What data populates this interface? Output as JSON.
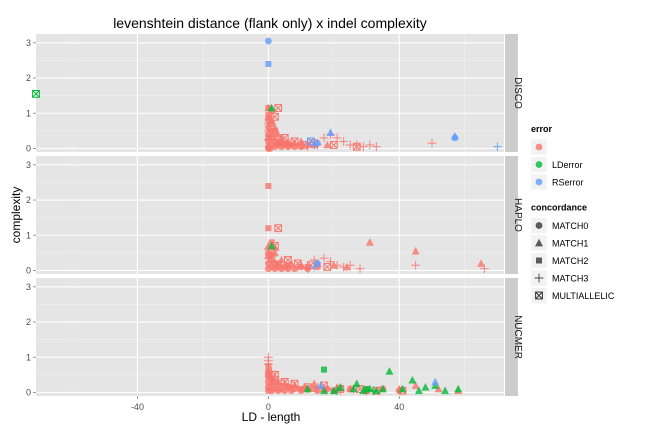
{
  "chart_data": {
    "type": "scatter",
    "title": "levenshtein distance (flank only) x indel complexity",
    "xlabel": "LD - length",
    "ylabel": "complexity",
    "xlim": [
      -71,
      72
    ],
    "ylim": [
      -0.1,
      3.25
    ],
    "x_ticks": [
      {
        "value": -40,
        "label": "-40"
      },
      {
        "value": 0,
        "label": "0"
      },
      {
        "value": 40,
        "label": "40"
      }
    ],
    "y_ticks": [
      {
        "value": 0,
        "label": "0"
      },
      {
        "value": 1,
        "label": "1"
      },
      {
        "value": 2,
        "label": "2"
      },
      {
        "value": 3,
        "label": "3"
      }
    ],
    "grid": true,
    "facets": [
      "DISCO",
      "HAPLO",
      "NUCMER"
    ],
    "legend_position": "right",
    "legends": [
      {
        "title": "error",
        "kind": "color",
        "entries": [
          {
            "key": "none",
            "label": "",
            "color": "#F8766D"
          },
          {
            "key": "LDerror",
            "label": "LDerror",
            "color": "#00BA38"
          },
          {
            "key": "RSerror",
            "label": "RSerror",
            "color": "#619CFF"
          }
        ]
      },
      {
        "title": "concordance",
        "kind": "shape",
        "entries": [
          {
            "key": "MATCH0",
            "label": "MATCH0",
            "shape": "circle"
          },
          {
            "key": "MATCH1",
            "label": "MATCH1",
            "shape": "triangle"
          },
          {
            "key": "MATCH2",
            "label": "MATCH2",
            "shape": "square"
          },
          {
            "key": "MATCH3",
            "label": "MATCH3",
            "shape": "plus"
          },
          {
            "key": "MULTIALLELIC",
            "label": "MULTIALLELIC",
            "shape": "boxx"
          }
        ]
      }
    ],
    "series": [
      {
        "facet": "DISCO",
        "error": "none",
        "concordance": "MATCH0",
        "points": [
          [
            0,
            0.05
          ],
          [
            0,
            0.2
          ],
          [
            0,
            0.4
          ],
          [
            1,
            0.1
          ],
          [
            1,
            0.3
          ],
          [
            2,
            0.05
          ],
          [
            2,
            0.2
          ],
          [
            3,
            0.1
          ],
          [
            3,
            0.15
          ],
          [
            4,
            0.05
          ],
          [
            5,
            0.1
          ],
          [
            6,
            0.05
          ],
          [
            7,
            0.1
          ],
          [
            8,
            0.05
          ],
          [
            10,
            0.05
          ],
          [
            12,
            0.1
          ],
          [
            0,
            0.6
          ],
          [
            0,
            0.8
          ],
          [
            1,
            0.5
          ],
          [
            2,
            0.4
          ],
          [
            0,
            0.0
          ],
          [
            0.5,
            0.0
          ]
        ]
      },
      {
        "facet": "DISCO",
        "error": "none",
        "concordance": "MATCH1",
        "points": [
          [
            0,
            1.15
          ],
          [
            1,
            0.8
          ],
          [
            2,
            0.6
          ],
          [
            3,
            0.4
          ],
          [
            4,
            0.3
          ],
          [
            6,
            0.2
          ],
          [
            8,
            0.15
          ],
          [
            10,
            0.2
          ],
          [
            14,
            0.1
          ],
          [
            18,
            0.1
          ],
          [
            0,
            0.9
          ],
          [
            1,
            1.1
          ]
        ]
      },
      {
        "facet": "DISCO",
        "error": "none",
        "concordance": "MATCH2",
        "points": [
          [
            0,
            1.15
          ],
          [
            0,
            0.95
          ],
          [
            1,
            0.7
          ],
          [
            2,
            0.5
          ],
          [
            0,
            0.3
          ],
          [
            3,
            0.2
          ],
          [
            5,
            0.15
          ]
        ]
      },
      {
        "facet": "DISCO",
        "error": "none",
        "concordance": "MATCH3",
        "points": [
          [
            0,
            0.5
          ],
          [
            1,
            0.35
          ],
          [
            2,
            0.25
          ],
          [
            4,
            0.15
          ],
          [
            6,
            0.1
          ],
          [
            9,
            0.1
          ],
          [
            12,
            0.05
          ],
          [
            15,
            0.1
          ],
          [
            17,
            0.3
          ],
          [
            19,
            0.4
          ],
          [
            21,
            0.3
          ],
          [
            23,
            0.2
          ],
          [
            25,
            0.1
          ],
          [
            27,
            0.1
          ],
          [
            29,
            0.05
          ],
          [
            31,
            0.1
          ],
          [
            33,
            0.05
          ],
          [
            50,
            0.15
          ],
          [
            0,
            0.7
          ],
          [
            1,
            0.9
          ],
          [
            0,
            0.25
          ]
        ]
      },
      {
        "facet": "DISCO",
        "error": "none",
        "concordance": "MULTIALLELIC",
        "points": [
          [
            3,
            1.15
          ],
          [
            2,
            0.9
          ],
          [
            5,
            0.3
          ],
          [
            8,
            0.2
          ],
          [
            11,
            0.1
          ],
          [
            14,
            0.15
          ],
          [
            20,
            0.1
          ],
          [
            27,
            0.05
          ]
        ]
      },
      {
        "facet": "DISCO",
        "error": "LDerror",
        "concordance": "MULTIALLELIC",
        "points": [
          [
            -71,
            1.55
          ]
        ]
      },
      {
        "facet": "DISCO",
        "error": "LDerror",
        "concordance": "MATCH1",
        "points": [
          [
            1,
            1.15
          ]
        ]
      },
      {
        "facet": "DISCO",
        "error": "RSerror",
        "concordance": "MATCH0",
        "points": [
          [
            0,
            3.05
          ],
          [
            15,
            0.15
          ],
          [
            57,
            0.3
          ]
        ]
      },
      {
        "facet": "DISCO",
        "error": "RSerror",
        "concordance": "MATCH1",
        "points": [
          [
            19,
            0.45
          ],
          [
            57,
            0.35
          ]
        ]
      },
      {
        "facet": "DISCO",
        "error": "RSerror",
        "concordance": "MATCH2",
        "points": [
          [
            0,
            2.4
          ]
        ]
      },
      {
        "facet": "DISCO",
        "error": "RSerror",
        "concordance": "MATCH3",
        "points": [
          [
            70,
            0.05
          ],
          [
            14,
            0.1
          ]
        ]
      },
      {
        "facet": "DISCO",
        "error": "RSerror",
        "concordance": "MULTIALLELIC",
        "points": [
          [
            13,
            0.2
          ]
        ]
      },
      {
        "facet": "HAPLO",
        "error": "none",
        "concordance": "MATCH0",
        "points": [
          [
            0,
            0.05
          ],
          [
            0,
            0.2
          ],
          [
            1,
            0.1
          ],
          [
            1,
            0.3
          ],
          [
            2,
            0.05
          ],
          [
            2,
            0.2
          ],
          [
            3,
            0.1
          ],
          [
            4,
            0.05
          ],
          [
            5,
            0.1
          ],
          [
            6,
            0.05
          ],
          [
            8,
            0.05
          ],
          [
            10,
            0.1
          ],
          [
            12,
            0.05
          ],
          [
            15,
            0.1
          ],
          [
            0,
            0.5
          ],
          [
            1,
            0.45
          ]
        ]
      },
      {
        "facet": "HAPLO",
        "error": "none",
        "concordance": "MATCH1",
        "points": [
          [
            0,
            0.7
          ],
          [
            2,
            0.5
          ],
          [
            4,
            0.3
          ],
          [
            7,
            0.2
          ],
          [
            10,
            0.15
          ],
          [
            15,
            0.2
          ],
          [
            20,
            0.15
          ],
          [
            24,
            0.1
          ],
          [
            31,
            0.8
          ],
          [
            45,
            0.55
          ],
          [
            65,
            0.2
          ],
          [
            2,
            0.65
          ]
        ]
      },
      {
        "facet": "HAPLO",
        "error": "none",
        "concordance": "MATCH2",
        "points": [
          [
            0,
            2.4
          ],
          [
            0,
            1.2
          ],
          [
            1,
            0.8
          ],
          [
            0,
            0.4
          ],
          [
            3,
            0.2
          ],
          [
            6,
            0.15
          ],
          [
            12,
            0.1
          ]
        ]
      },
      {
        "facet": "HAPLO",
        "error": "none",
        "concordance": "MATCH3",
        "points": [
          [
            0,
            0.6
          ],
          [
            1,
            0.4
          ],
          [
            2,
            0.25
          ],
          [
            4,
            0.15
          ],
          [
            6,
            0.1
          ],
          [
            9,
            0.1
          ],
          [
            12,
            0.05
          ],
          [
            14,
            0.3
          ],
          [
            17,
            0.35
          ],
          [
            19,
            0.25
          ],
          [
            21,
            0.15
          ],
          [
            23,
            0.1
          ],
          [
            25,
            0.15
          ],
          [
            28,
            0.05
          ],
          [
            45,
            0.15
          ],
          [
            66,
            0.05
          ],
          [
            0,
            0.35
          ]
        ]
      },
      {
        "facet": "HAPLO",
        "error": "none",
        "concordance": "MULTIALLELIC",
        "points": [
          [
            3,
            1.2
          ],
          [
            2,
            0.7
          ],
          [
            6,
            0.3
          ],
          [
            9,
            0.2
          ],
          [
            13,
            0.15
          ],
          [
            18,
            0.1
          ]
        ]
      },
      {
        "facet": "HAPLO",
        "error": "LDerror",
        "concordance": "MATCH1",
        "points": [
          [
            1,
            0.7
          ]
        ]
      },
      {
        "facet": "HAPLO",
        "error": "RSerror",
        "concordance": "MATCH0",
        "points": [
          [
            15,
            0.2
          ]
        ]
      },
      {
        "facet": "HAPLO",
        "error": "RSerror",
        "concordance": "MATCH3",
        "points": [
          [
            14,
            0.1
          ]
        ]
      },
      {
        "facet": "NUCMER",
        "error": "none",
        "concordance": "MATCH0",
        "points": [
          [
            0,
            0.05
          ],
          [
            0,
            0.15
          ],
          [
            0,
            0.3
          ],
          [
            1,
            0.05
          ],
          [
            1,
            0.2
          ],
          [
            2,
            0.1
          ],
          [
            2,
            0.3
          ],
          [
            3,
            0.05
          ],
          [
            4,
            0.1
          ],
          [
            5,
            0.05
          ],
          [
            6,
            0.15
          ],
          [
            7,
            0.05
          ],
          [
            8,
            0.1
          ],
          [
            10,
            0.05
          ],
          [
            12,
            0.1
          ],
          [
            15,
            0.05
          ],
          [
            18,
            0.1
          ],
          [
            20,
            0.05
          ],
          [
            25,
            0.1
          ],
          [
            30,
            0.05
          ],
          [
            35,
            0.1
          ],
          [
            40,
            0.05
          ],
          [
            0,
            0.45
          ],
          [
            1,
            0.4
          ],
          [
            0,
            0.6
          ]
        ]
      },
      {
        "facet": "NUCMER",
        "error": "none",
        "concordance": "MATCH1",
        "points": [
          [
            0,
            0.6
          ],
          [
            1,
            0.45
          ],
          [
            3,
            0.3
          ],
          [
            5,
            0.25
          ],
          [
            8,
            0.2
          ],
          [
            11,
            0.15
          ],
          [
            14,
            0.25
          ],
          [
            17,
            0.1
          ],
          [
            21,
            0.15
          ],
          [
            25,
            0.1
          ],
          [
            30,
            0.05
          ],
          [
            40,
            0.1
          ],
          [
            45,
            0.2
          ],
          [
            52,
            0.1
          ],
          [
            58,
            0.05
          ]
        ]
      },
      {
        "facet": "NUCMER",
        "error": "none",
        "concordance": "MATCH2",
        "points": [
          [
            0,
            0.5
          ],
          [
            1,
            0.3
          ],
          [
            3,
            0.2
          ],
          [
            6,
            0.15
          ],
          [
            10,
            0.1
          ],
          [
            14,
            0.1
          ],
          [
            20,
            0.05
          ],
          [
            0,
            0.75
          ]
        ]
      },
      {
        "facet": "NUCMER",
        "error": "none",
        "concordance": "MATCH3",
        "points": [
          [
            0,
            1.0
          ],
          [
            0,
            0.8
          ],
          [
            1,
            0.6
          ],
          [
            2,
            0.45
          ],
          [
            3,
            0.35
          ],
          [
            5,
            0.25
          ],
          [
            7,
            0.2
          ],
          [
            9,
            0.15
          ],
          [
            12,
            0.1
          ],
          [
            15,
            0.15
          ],
          [
            18,
            0.1
          ],
          [
            22,
            0.05
          ],
          [
            26,
            0.1
          ],
          [
            30,
            0.05
          ],
          [
            34,
            0.05
          ],
          [
            0,
            0.9
          ]
        ]
      },
      {
        "facet": "NUCMER",
        "error": "none",
        "concordance": "MULTIALLELIC",
        "points": [
          [
            2,
            0.5
          ],
          [
            5,
            0.3
          ],
          [
            8,
            0.25
          ],
          [
            12,
            0.15
          ],
          [
            17,
            0.2
          ],
          [
            22,
            0.1
          ],
          [
            28,
            0.1
          ],
          [
            33,
            0.05
          ],
          [
            41,
            0.05
          ]
        ]
      },
      {
        "facet": "NUCMER",
        "error": "LDerror",
        "concordance": "MATCH1",
        "points": [
          [
            12,
            0.1
          ],
          [
            17,
            0.05
          ],
          [
            22,
            0.15
          ],
          [
            26,
            0.1
          ],
          [
            29,
            0.05
          ],
          [
            31,
            0.1
          ],
          [
            33,
            0.05
          ],
          [
            35,
            0.1
          ],
          [
            37,
            0.6
          ],
          [
            41,
            0.1
          ],
          [
            44,
            0.35
          ],
          [
            46,
            0.05
          ],
          [
            48,
            0.15
          ],
          [
            51,
            0.2
          ],
          [
            54,
            0.05
          ],
          [
            58,
            0.1
          ],
          [
            27,
            0.25
          ],
          [
            20,
            0.05
          ]
        ]
      },
      {
        "facet": "NUCMER",
        "error": "LDerror",
        "concordance": "MATCH2",
        "points": [
          [
            17,
            0.65
          ],
          [
            30,
            0.1
          ]
        ]
      },
      {
        "facet": "NUCMER",
        "error": "LDerror",
        "concordance": "MATCH3",
        "points": [
          [
            21,
            0.05
          ],
          [
            32,
            0.05
          ]
        ]
      },
      {
        "facet": "NUCMER",
        "error": "RSerror",
        "concordance": "MATCH1",
        "points": [
          [
            51,
            0.3
          ],
          [
            16,
            0.2
          ]
        ]
      }
    ]
  }
}
